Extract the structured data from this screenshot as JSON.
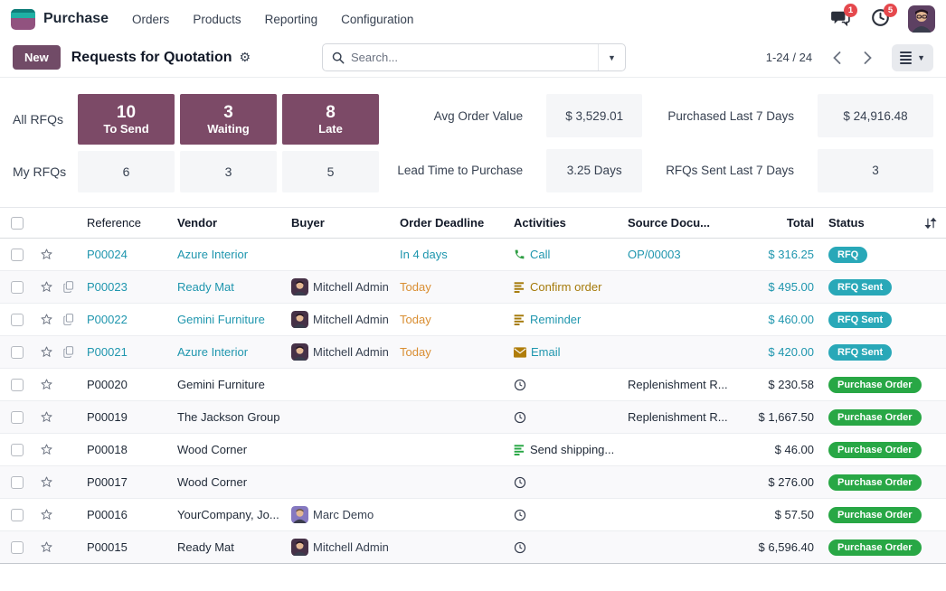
{
  "nav": {
    "app_name": "Purchase",
    "menus": [
      "Orders",
      "Products",
      "Reporting",
      "Configuration"
    ],
    "messages_badge": "1",
    "activities_badge": "5"
  },
  "control": {
    "new_label": "New",
    "title": "Requests for Quotation",
    "search_placeholder": "Search...",
    "pager": "1-24 / 24"
  },
  "dashboard": {
    "all_label": "All RFQs",
    "my_label": "My RFQs",
    "tiles": [
      {
        "value": "10",
        "label": "To Send",
        "my": "6"
      },
      {
        "value": "3",
        "label": "Waiting",
        "my": "3"
      },
      {
        "value": "8",
        "label": "Late",
        "my": "5"
      }
    ],
    "kpis": [
      {
        "label": "Avg Order Value",
        "value": "$ 3,529.01"
      },
      {
        "label": "Purchased Last 7 Days",
        "value": "$ 24,916.48"
      },
      {
        "label": "Lead Time to Purchase",
        "value": "3.25 Days"
      },
      {
        "label": "RFQs Sent Last 7 Days",
        "value": "3"
      }
    ]
  },
  "table": {
    "columns": [
      "Reference",
      "Vendor",
      "Buyer",
      "Order Deadline",
      "Activities",
      "Source Docu...",
      "Total",
      "Status"
    ],
    "rows": [
      {
        "ref": "P00024",
        "copy": false,
        "vendor": "Azure Interior",
        "buyer": "",
        "avatar": "",
        "deadline": "In 4 days",
        "deadline_style": "teal",
        "activity_icon": "phone",
        "activity_label": "Call",
        "activity_style": "teal",
        "source": "OP/00003",
        "source_style": "teal",
        "total": "$ 316.25",
        "total_style": "teal",
        "status": "RFQ",
        "status_style": "teal",
        "link_style": "teal"
      },
      {
        "ref": "P00023",
        "copy": true,
        "vendor": "Ready Mat",
        "buyer": "Mitchell Admin",
        "avatar": "mitchell",
        "deadline": "Today",
        "deadline_style": "orange",
        "activity_icon": "bars-gold",
        "activity_label": "Confirm order",
        "activity_style": "gold",
        "source": "",
        "source_style": "dark",
        "total": "$ 495.00",
        "total_style": "teal",
        "status": "RFQ Sent",
        "status_style": "teal",
        "link_style": "teal"
      },
      {
        "ref": "P00022",
        "copy": true,
        "vendor": "Gemini Furniture",
        "buyer": "Mitchell Admin",
        "avatar": "mitchell",
        "deadline": "Today",
        "deadline_style": "orange",
        "activity_icon": "bars-gold",
        "activity_label": "Reminder",
        "activity_style": "teal",
        "source": "",
        "source_style": "dark",
        "total": "$ 460.00",
        "total_style": "teal",
        "status": "RFQ Sent",
        "status_style": "teal",
        "link_style": "teal"
      },
      {
        "ref": "P00021",
        "copy": true,
        "vendor": "Azure Interior",
        "buyer": "Mitchell Admin",
        "avatar": "mitchell",
        "deadline": "Today",
        "deadline_style": "orange",
        "activity_icon": "envelope-gold",
        "activity_label": "Email",
        "activity_style": "teal",
        "source": "",
        "source_style": "dark",
        "total": "$ 420.00",
        "total_style": "teal",
        "status": "RFQ Sent",
        "status_style": "teal",
        "link_style": "teal"
      },
      {
        "ref": "P00020",
        "copy": false,
        "vendor": "Gemini Furniture",
        "buyer": "",
        "avatar": "",
        "deadline": "",
        "deadline_style": "dark",
        "activity_icon": "clock",
        "activity_label": "",
        "activity_style": "dark",
        "source": "Replenishment R...",
        "source_style": "dark",
        "total": "$ 230.58",
        "total_style": "dark",
        "status": "Purchase Order",
        "status_style": "green",
        "link_style": "dark"
      },
      {
        "ref": "P00019",
        "copy": false,
        "vendor": "The Jackson Group",
        "buyer": "",
        "avatar": "",
        "deadline": "",
        "deadline_style": "dark",
        "activity_icon": "clock",
        "activity_label": "",
        "activity_style": "dark",
        "source": "Replenishment R...",
        "source_style": "dark",
        "total": "$ 1,667.50",
        "total_style": "dark",
        "status": "Purchase Order",
        "status_style": "green",
        "link_style": "dark"
      },
      {
        "ref": "P00018",
        "copy": false,
        "vendor": "Wood Corner",
        "buyer": "",
        "avatar": "",
        "deadline": "",
        "deadline_style": "dark",
        "activity_icon": "bars-green",
        "activity_label": "Send shipping...",
        "activity_style": "dark",
        "source": "",
        "source_style": "dark",
        "total": "$ 46.00",
        "total_style": "dark",
        "status": "Purchase Order",
        "status_style": "green",
        "link_style": "dark"
      },
      {
        "ref": "P00017",
        "copy": false,
        "vendor": "Wood Corner",
        "buyer": "",
        "avatar": "",
        "deadline": "",
        "deadline_style": "dark",
        "activity_icon": "clock",
        "activity_label": "",
        "activity_style": "dark",
        "source": "",
        "source_style": "dark",
        "total": "$ 276.00",
        "total_style": "dark",
        "status": "Purchase Order",
        "status_style": "green",
        "link_style": "dark"
      },
      {
        "ref": "P00016",
        "copy": false,
        "vendor": "YourCompany, Jo...",
        "buyer": "Marc Demo",
        "avatar": "marc",
        "deadline": "",
        "deadline_style": "dark",
        "activity_icon": "clock",
        "activity_label": "",
        "activity_style": "dark",
        "source": "",
        "source_style": "dark",
        "total": "$ 57.50",
        "total_style": "dark",
        "status": "Purchase Order",
        "status_style": "green",
        "link_style": "dark"
      },
      {
        "ref": "P00015",
        "copy": false,
        "vendor": "Ready Mat",
        "buyer": "Mitchell Admin",
        "avatar": "mitchell",
        "deadline": "",
        "deadline_style": "dark",
        "activity_icon": "clock",
        "activity_label": "",
        "activity_style": "dark",
        "source": "",
        "source_style": "dark",
        "total": "$ 6,596.40",
        "total_style": "dark",
        "status": "Purchase Order",
        "status_style": "green",
        "link_style": "dark"
      }
    ]
  },
  "colors": {
    "brand_purple": "#714b67",
    "tile_purple": "#7c4a67",
    "link_teal": "#1f96ae",
    "badge_teal": "#29a8b8",
    "badge_green": "#28a745",
    "today_orange": "#d98e32",
    "activity_gold": "#a57a0a",
    "call_green": "#2f9e44",
    "alert_red": "#e5484d"
  }
}
